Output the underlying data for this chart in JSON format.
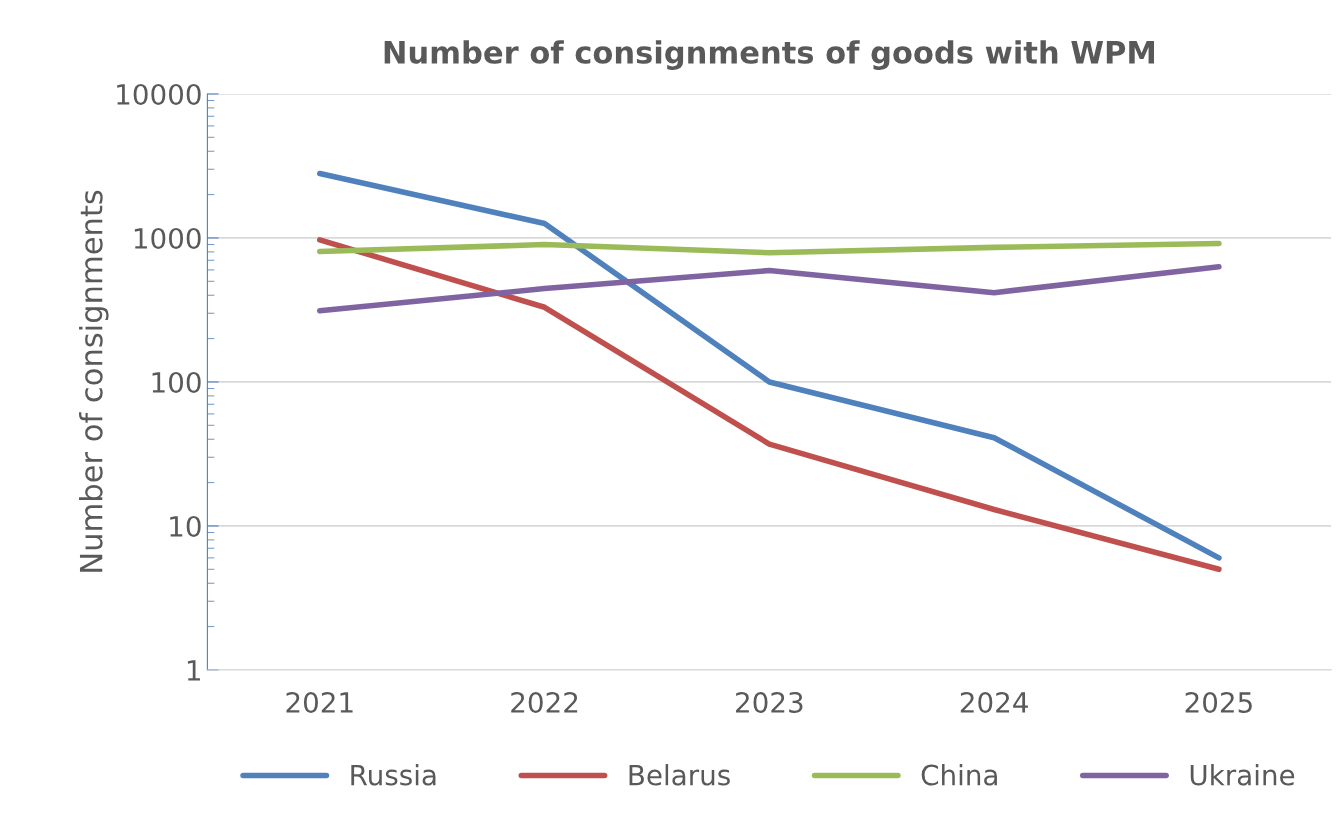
{
  "chart_data": {
    "type": "line",
    "title": "Number of consignments of goods with WPM",
    "ylabel": "Number of consignments",
    "categories": [
      "2021",
      "2022",
      "2023",
      "2024",
      "2025"
    ],
    "series": [
      {
        "name": "Russia",
        "color": "#4f81bd",
        "values": [
          2800,
          1260,
          100,
          41,
          6
        ]
      },
      {
        "name": "Belarus",
        "color": "#c0504d",
        "values": [
          970,
          330,
          37,
          13,
          5
        ]
      },
      {
        "name": "China",
        "color": "#9bbb59",
        "values": [
          805,
          900,
          790,
          860,
          915
        ]
      },
      {
        "name": "Ukraine",
        "color": "#8064a2",
        "values": [
          312,
          445,
          594,
          417,
          630
        ]
      }
    ],
    "log": "y",
    "ylim": [
      1,
      10000
    ],
    "yticks": [
      1,
      10,
      100,
      1000,
      10000
    ],
    "grid": "y",
    "legend": "bottom",
    "marker": "none",
    "line_style": "solid"
  }
}
